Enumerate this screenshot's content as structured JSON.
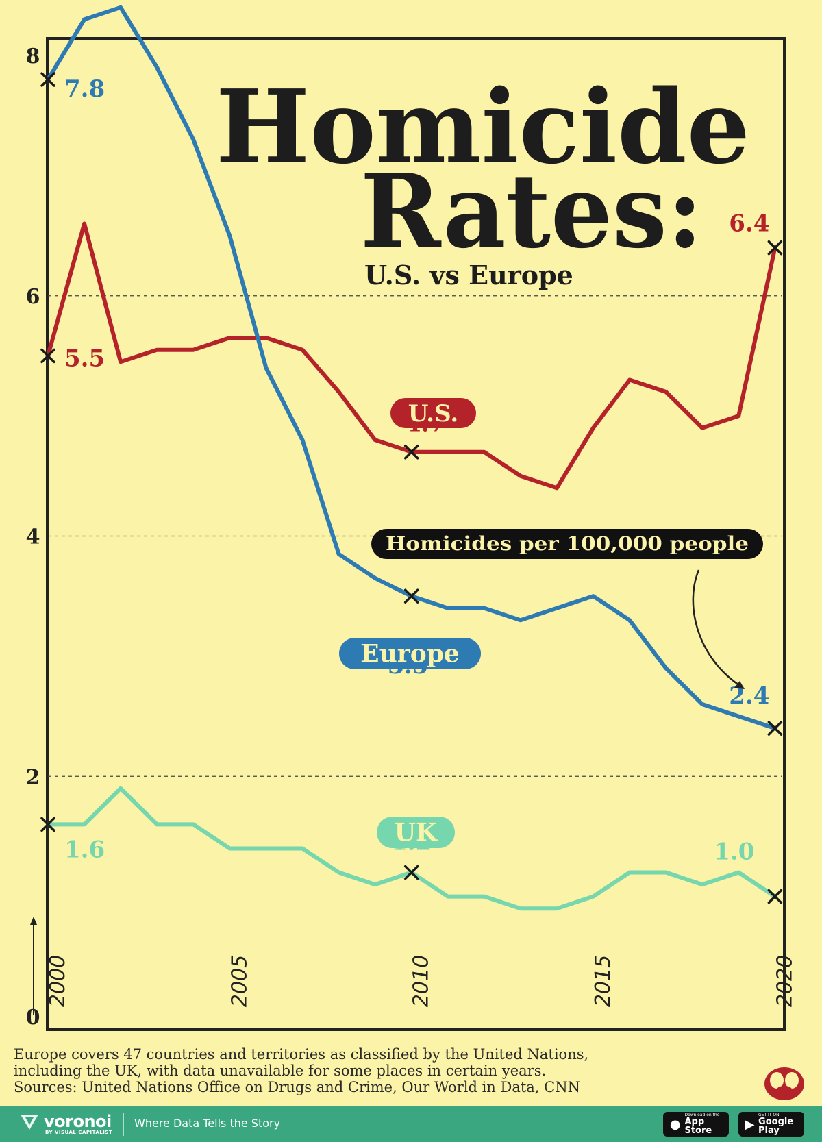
{
  "title_line1": "Homicide",
  "title_line2": "Rates:",
  "subtitle": "U.S. vs Europe",
  "unit_label": "Homicides per 100,000 people",
  "colors": {
    "us": "#b5232a",
    "europe": "#2e7ab2",
    "uk": "#76d6ad",
    "background": "#fbf3a8",
    "footer": "#3aa781"
  },
  "chart_data": {
    "type": "line",
    "x": [
      2000,
      2001,
      2002,
      2003,
      2004,
      2005,
      2006,
      2007,
      2008,
      2009,
      2010,
      2011,
      2012,
      2013,
      2014,
      2015,
      2016,
      2017,
      2018,
      2019,
      2020
    ],
    "ylim": [
      0,
      8
    ],
    "xlim": [
      2000,
      2020.2
    ],
    "yticks": [
      "0",
      "2",
      "4",
      "6",
      "8"
    ],
    "xticks": [
      "2000",
      "2005",
      "2010",
      "2015",
      "2020"
    ],
    "grid_y": [
      2,
      4,
      6
    ],
    "series": [
      {
        "name": "U.S.",
        "key": "us",
        "values": [
          5.5,
          6.6,
          5.45,
          5.55,
          5.55,
          5.65,
          5.65,
          5.55,
          5.2,
          4.8,
          4.7,
          4.7,
          4.7,
          4.5,
          4.4,
          4.9,
          5.3,
          5.2,
          4.9,
          5.0,
          6.4
        ]
      },
      {
        "name": "Europe",
        "key": "europe",
        "values": [
          7.8,
          8.3,
          8.4,
          7.9,
          7.3,
          6.5,
          5.4,
          4.8,
          3.85,
          3.65,
          3.5,
          3.4,
          3.4,
          3.3,
          3.4,
          3.5,
          3.3,
          2.9,
          2.6,
          2.5,
          2.4
        ]
      },
      {
        "name": "UK",
        "key": "uk",
        "values": [
          1.6,
          1.6,
          1.9,
          1.6,
          1.6,
          1.4,
          1.4,
          1.4,
          1.2,
          1.1,
          1.2,
          1.0,
          1.0,
          0.9,
          0.9,
          1.0,
          1.2,
          1.2,
          1.1,
          1.2,
          1.0
        ]
      }
    ],
    "labels": [
      {
        "series": "europe",
        "text": "7.8"
      },
      {
        "series": "us",
        "text": "5.5"
      },
      {
        "series": "us",
        "text": "6.4"
      },
      {
        "series": "us",
        "text": "4.7"
      },
      {
        "series": "europe",
        "text": "3.5"
      },
      {
        "series": "europe",
        "text": "2.4"
      },
      {
        "series": "uk",
        "text": "1.6"
      },
      {
        "series": "uk",
        "text": "1.2"
      },
      {
        "series": "uk",
        "text": "1.0"
      }
    ],
    "legend_pills": [
      {
        "series": "us",
        "text": "U.S."
      },
      {
        "series": "europe",
        "text": "Europe"
      },
      {
        "series": "uk",
        "text": "UK"
      }
    ]
  },
  "footnote": [
    "Europe covers 47 countries and territories as classified by the United Nations,",
    "including the UK, with data unavailable for some places in certain years.",
    "Sources: United Nations Office on Drugs and Crime, Our World in Data, CNN"
  ],
  "footer": {
    "brand": "voronoi",
    "brand_sub": "BY VISUAL CAPITALIST",
    "tagline": "Where Data Tells the Story",
    "app_store_small": "Download on the",
    "app_store": "App Store",
    "google_play_small": "GET IT ON",
    "google_play": "Google Play"
  }
}
